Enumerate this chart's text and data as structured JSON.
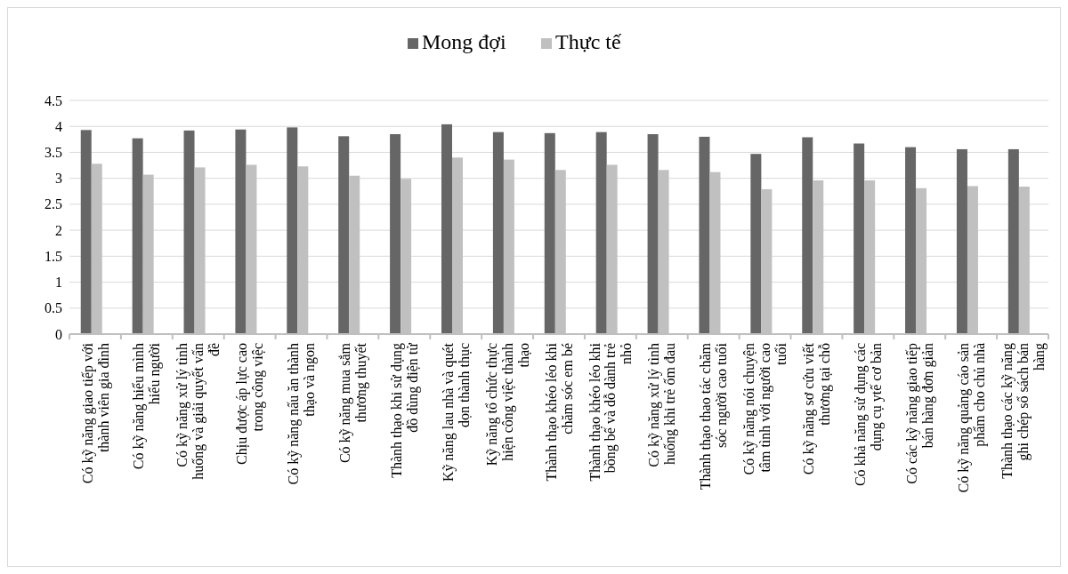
{
  "chart_data": {
    "type": "bar",
    "categories": [
      "Có kỹ năng giao tiếp với thành viên gia đình",
      "Có kỹ năng hiểu mình hiểu người",
      "Có kỹ năng xử lý tình huống và giải quyết vấn đề",
      "Chịu được áp lực cao trong công việc",
      "Có kỹ năng nấu ăn thành thạo và ngon",
      "Có kỹ năng mua sắm thương thuyết",
      "Thành thạo khi sử dụng đồ dùng điện tử",
      "Kỹ năng lau nhà và quét dọn thành thục",
      "Kỹ năng tổ chức thực hiện công việc thành thạo",
      "Thành thạo khéo léo khi chăm sóc em bé",
      "Thành thạo khéo léo khi bồng bế và dỗ dành trẻ nhỏ",
      "Có kỹ năng xử lý tình huống khi trẻ ốm đau",
      "Thành thạo thao tác chăm sóc người cao tuổi",
      "Có kỹ năng nói chuyện tâm tình với người cao tuổi",
      "Có kỹ năng sơ cứu viết thương tại chỗ",
      "Có khả năng sử dụng các dụng cụ ytế cơ bản",
      "Có các kỹ năng giao tiếp bán hàng đơn giản",
      "Có kỹ năng quảng cáo sản phẩm cho chủ nhà",
      "Thành thạo các kỹ năng ghi chép sổ sách bán hàng"
    ],
    "series": [
      {
        "name": "Mong đợi",
        "color": "#666666",
        "values": [
          3.93,
          3.77,
          3.92,
          3.94,
          3.98,
          3.81,
          3.85,
          4.04,
          3.89,
          3.87,
          3.89,
          3.85,
          3.8,
          3.47,
          3.79,
          3.67,
          3.6,
          3.56,
          3.56
        ]
      },
      {
        "name": "Thực tế",
        "color": "#c0c0c0",
        "values": [
          3.28,
          3.07,
          3.21,
          3.26,
          3.23,
          3.05,
          2.99,
          3.4,
          3.36,
          3.16,
          3.26,
          3.16,
          3.12,
          2.79,
          2.96,
          2.96,
          2.81,
          2.85,
          2.84
        ]
      }
    ],
    "ylim": [
      0,
      4.5
    ],
    "yticks": [
      0,
      0.5,
      1,
      1.5,
      2,
      2.5,
      3,
      3.5,
      4,
      4.5
    ],
    "grid": "y",
    "legend": "top"
  }
}
